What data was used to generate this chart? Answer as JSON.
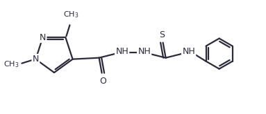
{
  "bg_color": "#ffffff",
  "line_color": "#2a2a3a",
  "line_width": 1.6,
  "font_size": 8.5,
  "figsize": [
    3.83,
    1.65
  ],
  "dpi": 100,
  "xlim": [
    0,
    383
  ],
  "ylim": [
    0,
    165
  ]
}
